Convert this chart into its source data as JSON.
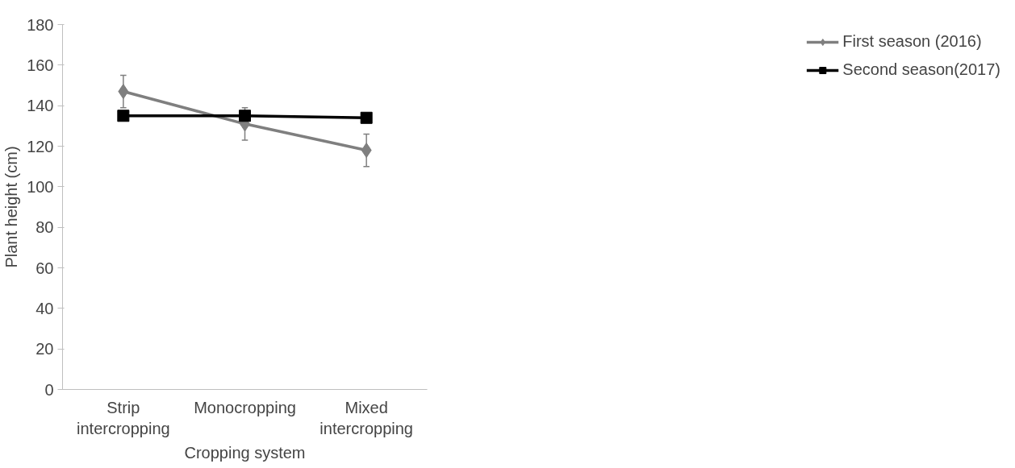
{
  "chart_data": {
    "type": "line",
    "xlabel": "Cropping system",
    "ylabel": "Plant height (cm)",
    "categories": [
      "Strip intercropping",
      "Monocropping",
      "Mixed intercropping"
    ],
    "series": [
      {
        "name": "First season (2016)",
        "color": "#7f7f7f",
        "marker": "diamond",
        "values": [
          147,
          131,
          118
        ],
        "errors": [
          8,
          8,
          8
        ]
      },
      {
        "name": "Second season(2017)",
        "color": "#000000",
        "marker": "square",
        "values": [
          135,
          135,
          134
        ]
      }
    ],
    "ylim": [
      0,
      180
    ],
    "yticks": [
      0,
      20,
      40,
      60,
      80,
      100,
      120,
      140,
      160,
      180
    ],
    "grid": false,
    "legend": "right"
  }
}
